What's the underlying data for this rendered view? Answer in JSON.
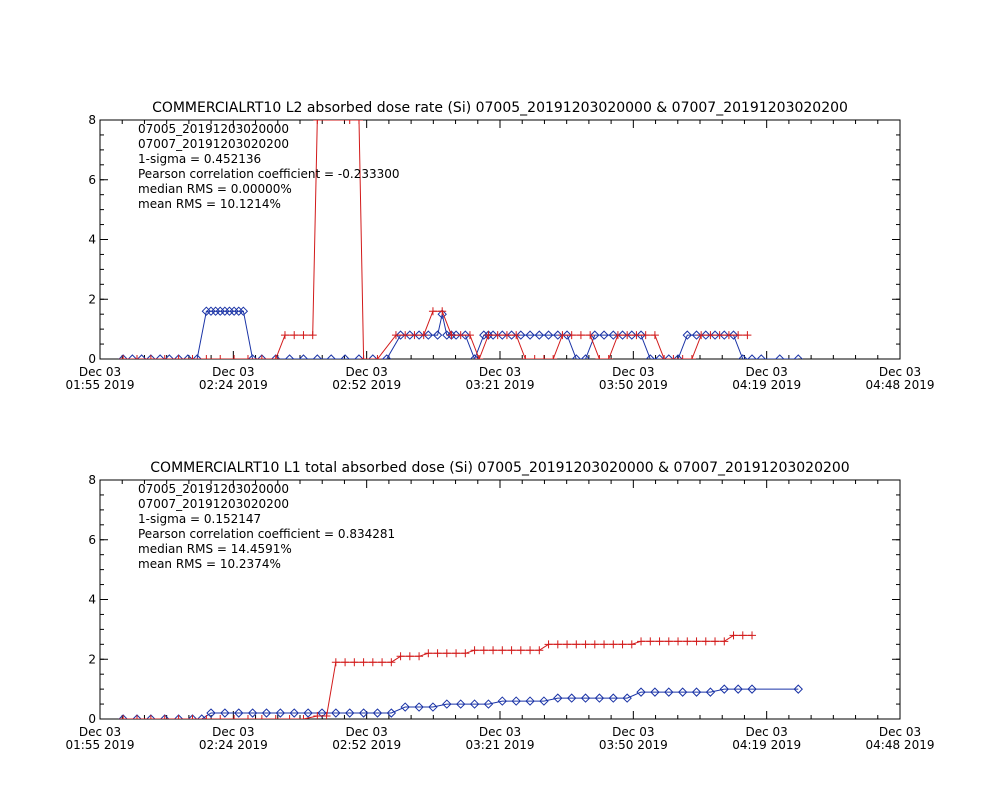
{
  "chart_data": [
    {
      "type": "line",
      "title": "COMMERCIALRT10 L2 absorbed dose rate (Si) 07005_20191203020000 & 07007_20191203020200",
      "xlim": [
        "2019-12-03 01:55",
        "2019-12-03 04:48"
      ],
      "ylim": [
        0,
        8
      ],
      "y_ticks": [
        "0",
        "2",
        "4",
        "6",
        "8"
      ],
      "x_ticks": [
        {
          "line1": "Dec 03",
          "line2": "01:55 2019"
        },
        {
          "line1": "Dec 03",
          "line2": "02:24 2019"
        },
        {
          "line1": "Dec 03",
          "line2": "02:52 2019"
        },
        {
          "line1": "Dec 03",
          "line2": "03:21 2019"
        },
        {
          "line1": "Dec 03",
          "line2": "03:50 2019"
        },
        {
          "line1": "Dec 03",
          "line2": "04:19 2019"
        },
        {
          "line1": "Dec 03",
          "line2": "04:48 2019"
        }
      ],
      "legend": [
        "07005_20191203020000",
        "07007_20191203020200"
      ],
      "stats": [
        "1-sigma = 0.452136",
        "Pearson correlation coefficient = -0.233300",
        "median RMS = 0.00000%",
        "mean RMS = 10.1214%"
      ],
      "series": [
        {
          "name": "07005_20191203020000",
          "color": "#1a33a6",
          "marker": "diamond",
          "x": [
            "2019-12-03 02:00",
            "2019-12-03 02:02",
            "2019-12-03 02:04",
            "2019-12-03 02:06",
            "2019-12-03 02:08",
            "2019-12-03 02:10",
            "2019-12-03 02:12",
            "2019-12-03 02:14",
            "2019-12-03 02:16",
            "2019-12-03 02:18",
            "2019-12-03 02:19",
            "2019-12-03 02:20",
            "2019-12-03 02:21",
            "2019-12-03 02:22",
            "2019-12-03 02:23",
            "2019-12-03 02:24",
            "2019-12-03 02:25",
            "2019-12-03 02:26",
            "2019-12-03 02:28",
            "2019-12-03 02:30",
            "2019-12-03 02:33",
            "2019-12-03 02:36",
            "2019-12-03 02:39",
            "2019-12-03 02:42",
            "2019-12-03 02:45",
            "2019-12-03 02:48",
            "2019-12-03 02:51",
            "2019-12-03 02:54",
            "2019-12-03 02:57",
            "2019-12-03 03:00",
            "2019-12-03 03:02",
            "2019-12-03 03:04",
            "2019-12-03 03:06",
            "2019-12-03 03:08",
            "2019-12-03 03:09",
            "2019-12-03 03:10",
            "2019-12-03 03:11",
            "2019-12-03 03:12",
            "2019-12-03 03:14",
            "2019-12-03 03:16",
            "2019-12-03 03:18",
            "2019-12-03 03:19",
            "2019-12-03 03:20",
            "2019-12-03 03:22",
            "2019-12-03 03:24",
            "2019-12-03 03:26",
            "2019-12-03 03:28",
            "2019-12-03 03:30",
            "2019-12-03 03:32",
            "2019-12-03 03:34",
            "2019-12-03 03:36",
            "2019-12-03 03:38",
            "2019-12-03 03:40",
            "2019-12-03 03:42",
            "2019-12-03 03:44",
            "2019-12-03 03:46",
            "2019-12-03 03:48",
            "2019-12-03 03:50",
            "2019-12-03 03:52",
            "2019-12-03 03:54",
            "2019-12-03 03:56",
            "2019-12-03 03:58",
            "2019-12-03 04:00",
            "2019-12-03 04:02",
            "2019-12-03 04:04",
            "2019-12-03 04:06",
            "2019-12-03 04:08",
            "2019-12-03 04:10",
            "2019-12-03 04:12",
            "2019-12-03 04:14",
            "2019-12-03 04:16",
            "2019-12-03 04:18",
            "2019-12-03 04:22",
            "2019-12-03 04:26"
          ],
          "y": [
            0,
            0,
            0,
            0,
            0,
            0,
            0,
            0,
            0,
            1.6,
            1.6,
            1.6,
            1.6,
            1.6,
            1.6,
            1.6,
            1.6,
            1.6,
            0,
            0,
            0,
            0,
            0,
            0,
            0,
            0,
            0,
            0,
            0,
            0.8,
            0.8,
            0.8,
            0.8,
            0.8,
            1.5,
            0.8,
            0.8,
            0.8,
            0.8,
            0,
            0.8,
            0.8,
            0.8,
            0.8,
            0.8,
            0.8,
            0.8,
            0.8,
            0.8,
            0.8,
            0.8,
            0,
            0,
            0.8,
            0.8,
            0.8,
            0.8,
            0.8,
            0.8,
            0,
            0,
            0,
            0,
            0.8,
            0.8,
            0.8,
            0.8,
            0.8,
            0.8,
            0,
            0,
            0,
            0,
            0
          ]
        },
        {
          "name": "07007_20191203020200",
          "color": "#d21a1a",
          "marker": "plus",
          "x": [
            "2019-12-03 02:00",
            "2019-12-03 02:03",
            "2019-12-03 02:06",
            "2019-12-03 02:09",
            "2019-12-03 02:12",
            "2019-12-03 02:15",
            "2019-12-03 02:18",
            "2019-12-03 02:21",
            "2019-12-03 02:24",
            "2019-12-03 02:27",
            "2019-12-03 02:30",
            "2019-12-03 02:33",
            "2019-12-03 02:35",
            "2019-12-03 02:37",
            "2019-12-03 02:39",
            "2019-12-03 02:41",
            "2019-12-03 02:42",
            "2019-12-03 02:49",
            "2019-12-03 02:51",
            "2019-12-03 02:52",
            "2019-12-03 02:55",
            "2019-12-03 02:59",
            "2019-12-03 03:01",
            "2019-12-03 03:03",
            "2019-12-03 03:05",
            "2019-12-03 03:07",
            "2019-12-03 03:09",
            "2019-12-03 03:11",
            "2019-12-03 03:13",
            "2019-12-03 03:15",
            "2019-12-03 03:17",
            "2019-12-03 03:19",
            "2019-12-03 03:21",
            "2019-12-03 03:23",
            "2019-12-03 03:25",
            "2019-12-03 03:27",
            "2019-12-03 03:29",
            "2019-12-03 03:31",
            "2019-12-03 03:33",
            "2019-12-03 03:35",
            "2019-12-03 03:37",
            "2019-12-03 03:39",
            "2019-12-03 03:41",
            "2019-12-03 03:43",
            "2019-12-03 03:45",
            "2019-12-03 03:47",
            "2019-12-03 03:49",
            "2019-12-03 03:51",
            "2019-12-03 03:53",
            "2019-12-03 03:55",
            "2019-12-03 03:57",
            "2019-12-03 03:59",
            "2019-12-03 04:01",
            "2019-12-03 04:03",
            "2019-12-03 04:05",
            "2019-12-03 04:07",
            "2019-12-03 04:09",
            "2019-12-03 04:11",
            "2019-12-03 04:13",
            "2019-12-03 04:15"
          ],
          "y": [
            0,
            0,
            0,
            0,
            0,
            0,
            0,
            0,
            0,
            0,
            0,
            0,
            0.8,
            0.8,
            0.8,
            0.8,
            8,
            8,
            8,
            0,
            0,
            0.8,
            0.8,
            0.8,
            0.8,
            1.6,
            1.6,
            0.8,
            0.8,
            0.8,
            0,
            0.8,
            0.8,
            0.8,
            0.8,
            0,
            0,
            0,
            0,
            0.8,
            0.8,
            0.8,
            0.8,
            0,
            0,
            0.8,
            0.8,
            0.8,
            0.8,
            0.8,
            0,
            0,
            0,
            0,
            0.8,
            0.8,
            0.8,
            0.8,
            0.8,
            0.8
          ]
        }
      ]
    },
    {
      "type": "line",
      "title": "COMMERCIALRT10 L1 total absorbed dose (Si) 07005_20191203020000 & 07007_20191203020200",
      "xlim": [
        "2019-12-03 01:55",
        "2019-12-03 04:48"
      ],
      "ylim": [
        0,
        8
      ],
      "y_ticks": [
        "0",
        "2",
        "4",
        "6",
        "8"
      ],
      "x_ticks": [
        {
          "line1": "Dec 03",
          "line2": "01:55 2019"
        },
        {
          "line1": "Dec 03",
          "line2": "02:24 2019"
        },
        {
          "line1": "Dec 03",
          "line2": "02:52 2019"
        },
        {
          "line1": "Dec 03",
          "line2": "03:21 2019"
        },
        {
          "line1": "Dec 03",
          "line2": "03:50 2019"
        },
        {
          "line1": "Dec 03",
          "line2": "04:19 2019"
        },
        {
          "line1": "Dec 03",
          "line2": "04:48 2019"
        }
      ],
      "legend": [
        "07005_20191203020000",
        "07007_20191203020200"
      ],
      "stats": [
        "1-sigma = 0.152147",
        "Pearson correlation coefficient = 0.834281",
        "median RMS = 14.4591%",
        "mean RMS = 10.2374%"
      ],
      "series": [
        {
          "name": "07005_20191203020000",
          "color": "#1a33a6",
          "marker": "diamond",
          "x": [
            "2019-12-03 02:00",
            "2019-12-03 02:03",
            "2019-12-03 02:06",
            "2019-12-03 02:09",
            "2019-12-03 02:12",
            "2019-12-03 02:15",
            "2019-12-03 02:17",
            "2019-12-03 02:19",
            "2019-12-03 02:22",
            "2019-12-03 02:25",
            "2019-12-03 02:28",
            "2019-12-03 02:31",
            "2019-12-03 02:34",
            "2019-12-03 02:37",
            "2019-12-03 02:40",
            "2019-12-03 02:43",
            "2019-12-03 02:46",
            "2019-12-03 02:49",
            "2019-12-03 02:52",
            "2019-12-03 02:55",
            "2019-12-03 02:58",
            "2019-12-03 03:01",
            "2019-12-03 03:04",
            "2019-12-03 03:07",
            "2019-12-03 03:10",
            "2019-12-03 03:13",
            "2019-12-03 03:16",
            "2019-12-03 03:19",
            "2019-12-03 03:22",
            "2019-12-03 03:25",
            "2019-12-03 03:28",
            "2019-12-03 03:31",
            "2019-12-03 03:34",
            "2019-12-03 03:37",
            "2019-12-03 03:40",
            "2019-12-03 03:43",
            "2019-12-03 03:46",
            "2019-12-03 03:49",
            "2019-12-03 03:52",
            "2019-12-03 03:55",
            "2019-12-03 03:58",
            "2019-12-03 04:01",
            "2019-12-03 04:04",
            "2019-12-03 04:07",
            "2019-12-03 04:10",
            "2019-12-03 04:13",
            "2019-12-03 04:16",
            "2019-12-03 04:26"
          ],
          "y": [
            0,
            0,
            0,
            0,
            0,
            0,
            0,
            0.2,
            0.2,
            0.2,
            0.2,
            0.2,
            0.2,
            0.2,
            0.2,
            0.2,
            0.2,
            0.2,
            0.2,
            0.2,
            0.2,
            0.4,
            0.4,
            0.4,
            0.5,
            0.5,
            0.5,
            0.5,
            0.6,
            0.6,
            0.6,
            0.6,
            0.7,
            0.7,
            0.7,
            0.7,
            0.7,
            0.7,
            0.9,
            0.9,
            0.9,
            0.9,
            0.9,
            0.9,
            1.0,
            1.0,
            1.0,
            1.0
          ]
        },
        {
          "name": "07007_20191203020200",
          "color": "#d21a1a",
          "marker": "plus",
          "x": [
            "2019-12-03 02:00",
            "2019-12-03 02:03",
            "2019-12-03 02:06",
            "2019-12-03 02:09",
            "2019-12-03 02:12",
            "2019-12-03 02:15",
            "2019-12-03 02:18",
            "2019-12-03 02:21",
            "2019-12-03 02:24",
            "2019-12-03 02:27",
            "2019-12-03 02:30",
            "2019-12-03 02:33",
            "2019-12-03 02:36",
            "2019-12-03 02:39",
            "2019-12-03 02:42",
            "2019-12-03 02:44",
            "2019-12-03 02:46",
            "2019-12-03 02:48",
            "2019-12-03 02:50",
            "2019-12-03 02:52",
            "2019-12-03 02:54",
            "2019-12-03 02:56",
            "2019-12-03 02:58",
            "2019-12-03 03:00",
            "2019-12-03 03:02",
            "2019-12-03 03:04",
            "2019-12-03 03:06",
            "2019-12-03 03:08",
            "2019-12-03 03:10",
            "2019-12-03 03:12",
            "2019-12-03 03:14",
            "2019-12-03 03:16",
            "2019-12-03 03:18",
            "2019-12-03 03:20",
            "2019-12-03 03:22",
            "2019-12-03 03:24",
            "2019-12-03 03:26",
            "2019-12-03 03:28",
            "2019-12-03 03:30",
            "2019-12-03 03:32",
            "2019-12-03 03:34",
            "2019-12-03 03:36",
            "2019-12-03 03:38",
            "2019-12-03 03:40",
            "2019-12-03 03:42",
            "2019-12-03 03:44",
            "2019-12-03 03:46",
            "2019-12-03 03:48",
            "2019-12-03 03:50",
            "2019-12-03 03:52",
            "2019-12-03 03:54",
            "2019-12-03 03:56",
            "2019-12-03 03:58",
            "2019-12-03 04:00",
            "2019-12-03 04:02",
            "2019-12-03 04:04",
            "2019-12-03 04:06",
            "2019-12-03 04:08",
            "2019-12-03 04:10",
            "2019-12-03 04:12",
            "2019-12-03 04:14",
            "2019-12-03 04:16"
          ],
          "y": [
            0,
            0,
            0,
            0,
            0,
            0,
            0,
            0,
            0,
            0,
            0,
            0,
            0,
            0,
            0.1,
            0.1,
            1.9,
            1.9,
            1.9,
            1.9,
            1.9,
            1.9,
            1.9,
            2.1,
            2.1,
            2.1,
            2.2,
            2.2,
            2.2,
            2.2,
            2.2,
            2.3,
            2.3,
            2.3,
            2.3,
            2.3,
            2.3,
            2.3,
            2.3,
            2.5,
            2.5,
            2.5,
            2.5,
            2.5,
            2.5,
            2.5,
            2.5,
            2.5,
            2.5,
            2.6,
            2.6,
            2.6,
            2.6,
            2.6,
            2.6,
            2.6,
            2.6,
            2.6,
            2.6,
            2.8,
            2.8,
            2.8
          ]
        }
      ]
    }
  ]
}
